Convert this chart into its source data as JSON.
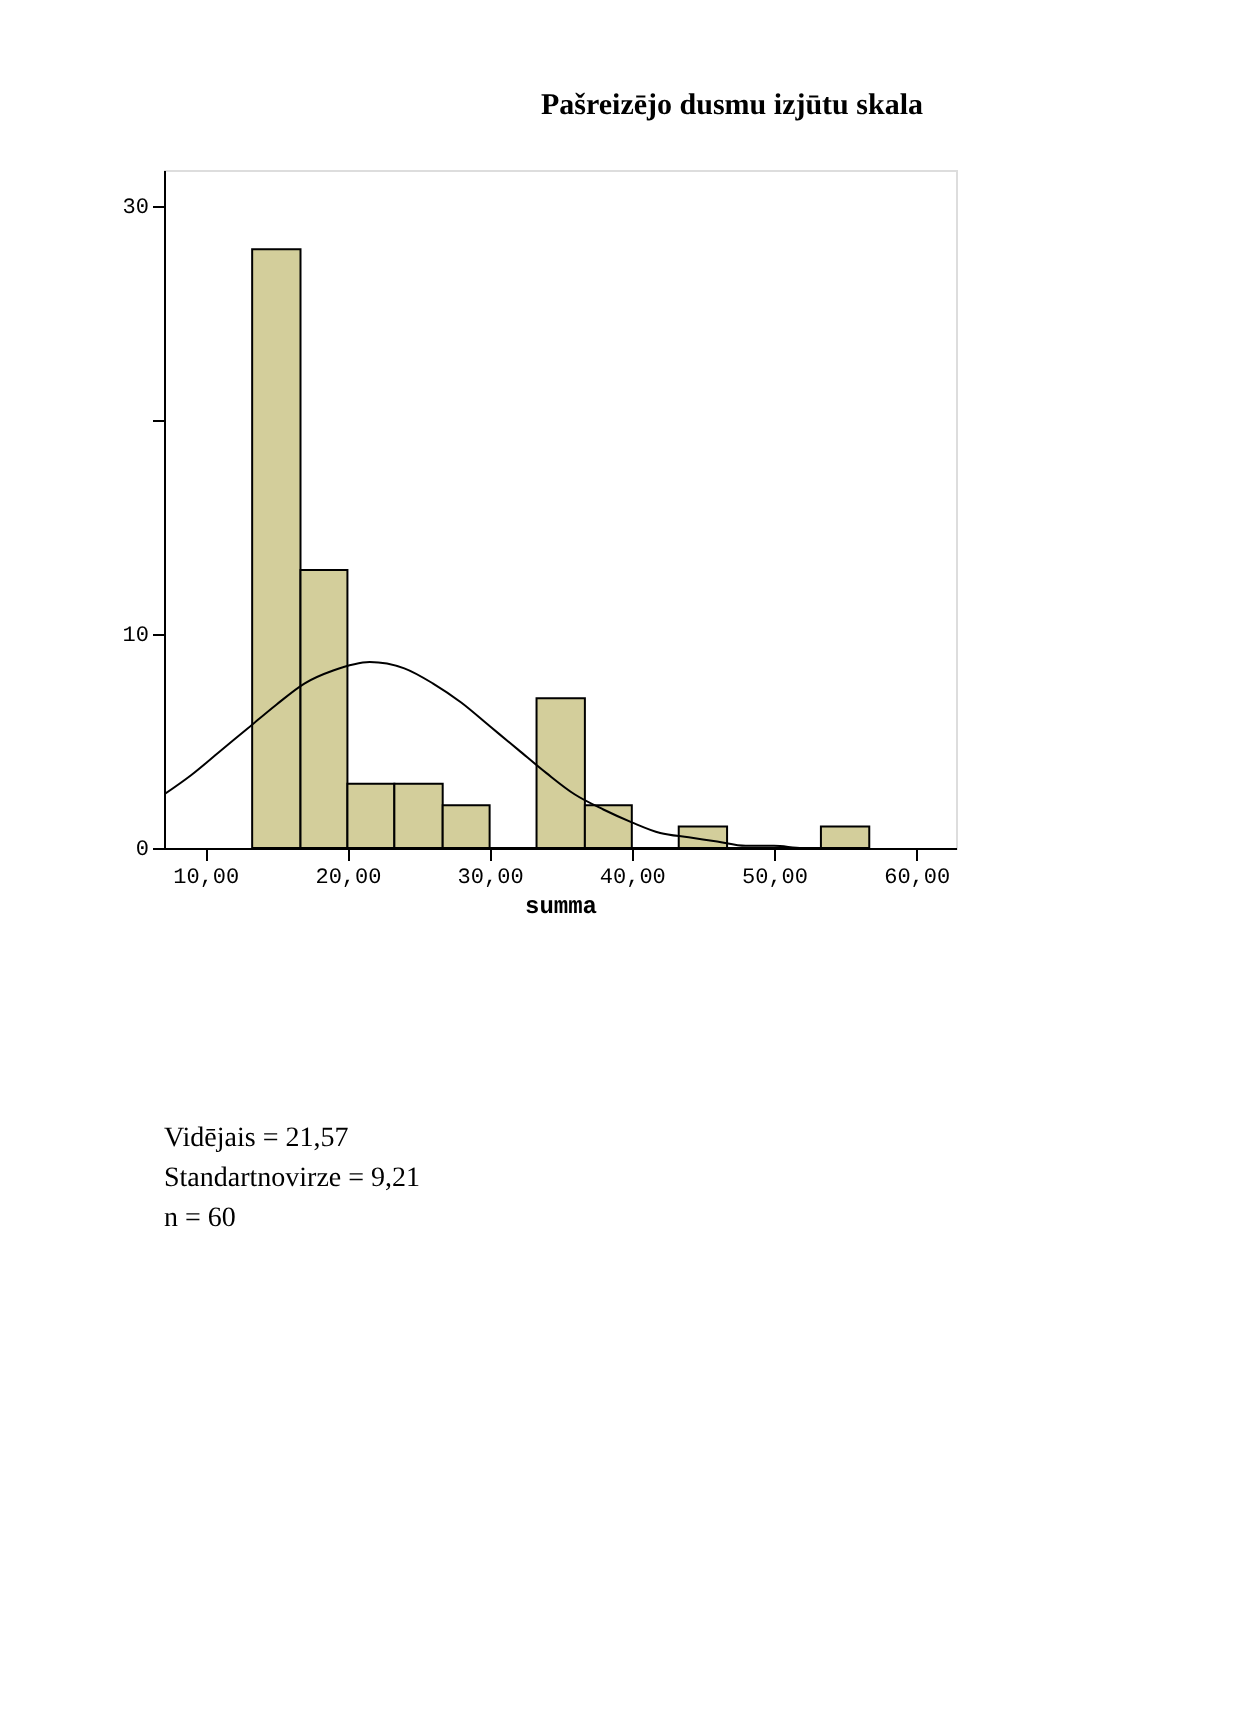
{
  "chart_data": {
    "type": "histogram",
    "title": "Pašreizējo dusmu izjūtu skala",
    "xlabel": "summa",
    "bins": [
      13.3,
      16.7,
      20,
      23.3,
      26.7,
      30,
      33.3,
      36.7,
      40,
      43.3,
      46.7,
      53.3,
      56.7
    ],
    "values": [
      28,
      13,
      3,
      3,
      2,
      0,
      7,
      2,
      0,
      1,
      0,
      1
    ],
    "color": "#d3ce9b",
    "xlim": [
      7.1,
      62.8
    ],
    "xticks": [
      {
        "value": 10,
        "label": "10,00"
      },
      {
        "value": 20,
        "label": "20,00"
      },
      {
        "value": 30,
        "label": "30,00"
      },
      {
        "value": 40,
        "label": "40,00"
      },
      {
        "value": 50,
        "label": "50,00"
      },
      {
        "value": 60,
        "label": "60,00"
      }
    ],
    "ylim": [
      0,
      31.7
    ],
    "yticks": [
      0,
      10,
      {
        "value": 20,
        "label": null
      },
      30
    ],
    "grid": false,
    "series": [
      {
        "type": "line",
        "color": "#000000",
        "x": [
          7.1,
          9,
          11,
          13,
          15,
          17,
          19,
          21.57,
          24,
          26,
          28,
          30,
          32,
          34,
          36,
          38,
          40,
          42,
          44,
          46,
          48,
          50,
          52,
          54
        ],
        "values": [
          2.5,
          3.4,
          4.5,
          5.6,
          6.7,
          7.7,
          8.3,
          8.7,
          8.4,
          7.7,
          6.8,
          5.7,
          4.6,
          3.5,
          2.5,
          1.8,
          1.2,
          0.7,
          0.5,
          0.3,
          0.1,
          0.1,
          0,
          0
        ]
      }
    ],
    "annotations": [
      "Vidējais = 21,57",
      "Standartnovirze = 9,21",
      "n = 60"
    ]
  }
}
